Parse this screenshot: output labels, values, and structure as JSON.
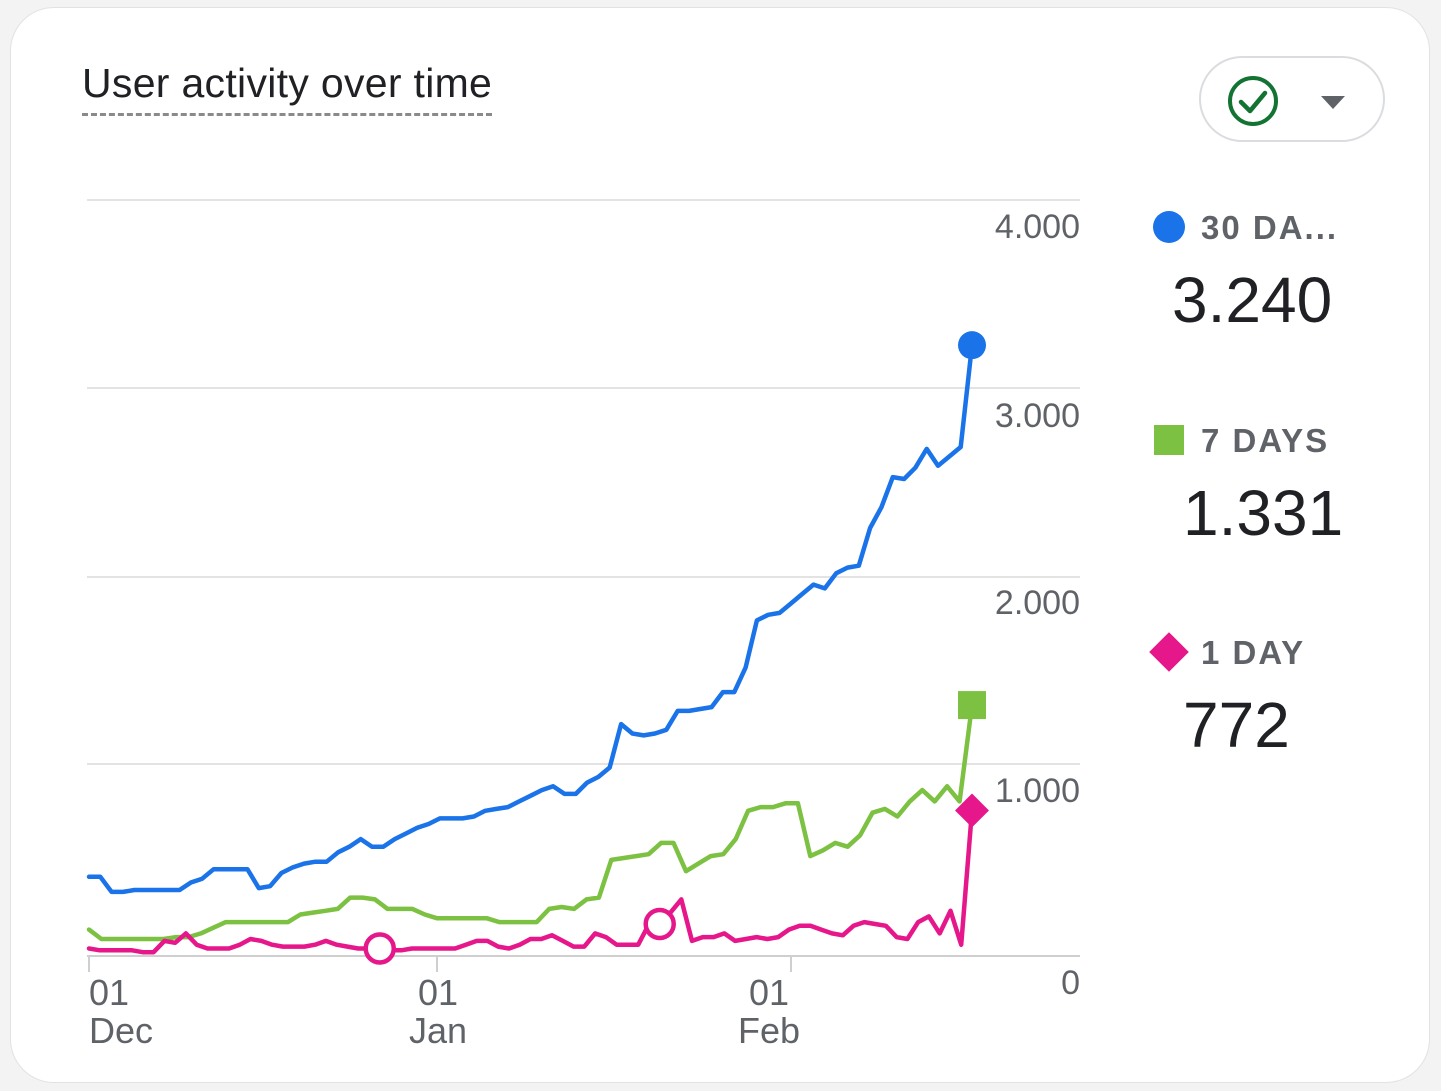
{
  "card": {
    "title": "User activity over time",
    "compare_icon": "check-circle-icon",
    "dropdown_icon": "caret-down-icon"
  },
  "legend": [
    {
      "label": "30 DA...",
      "value": "3.240",
      "marker": "circle",
      "color": "#1a73e8"
    },
    {
      "label": "7 DAYS",
      "value": "1.331",
      "marker": "square",
      "color": "#7cc142"
    },
    {
      "label": "1 DAY",
      "value": "772",
      "marker": "diamond",
      "color": "#e5178a"
    }
  ],
  "chart_data": {
    "type": "line",
    "y_ticks": [
      "4.000",
      "3.000",
      "2.000",
      "1.000",
      "0"
    ],
    "ylim": [
      0,
      4000
    ],
    "x_ticks": [
      {
        "day": "01",
        "month": "Dec"
      },
      {
        "day": "01",
        "month": "Jan"
      },
      {
        "day": "01",
        "month": "Feb"
      }
    ],
    "x_start": "2023-12-01",
    "grid": true,
    "legend_position": "right",
    "series": [
      {
        "name": "30 DA...",
        "color": "#1a73e8",
        "end_marker": "circle",
        "values": [
          420,
          420,
          340,
          340,
          350,
          350,
          350,
          350,
          350,
          390,
          410,
          460,
          460,
          460,
          460,
          360,
          370,
          440,
          470,
          490,
          500,
          500,
          550,
          580,
          620,
          580,
          580,
          620,
          650,
          680,
          700,
          730,
          730,
          730,
          740,
          770,
          780,
          790,
          820,
          850,
          880,
          900,
          860,
          860,
          920,
          950,
          1000,
          1230,
          1180,
          1170,
          1180,
          1200,
          1300,
          1300,
          1310,
          1320,
          1400,
          1400,
          1530,
          1780,
          1810,
          1820,
          1870,
          1920,
          1970,
          1950,
          2030,
          2060,
          2070,
          2270,
          2380,
          2540,
          2530,
          2590,
          2690,
          2600,
          2650,
          2700,
          3240
        ]
      },
      {
        "name": "7 DAYS",
        "color": "#7cc142",
        "end_marker": "square",
        "values": [
          140,
          90,
          90,
          90,
          90,
          90,
          90,
          100,
          100,
          120,
          150,
          180,
          180,
          180,
          180,
          180,
          180,
          220,
          230,
          240,
          250,
          310,
          310,
          300,
          250,
          250,
          250,
          220,
          200,
          200,
          200,
          200,
          200,
          180,
          180,
          180,
          180,
          250,
          260,
          250,
          300,
          310,
          510,
          520,
          530,
          540,
          600,
          600,
          450,
          490,
          530,
          540,
          620,
          770,
          790,
          790,
          810,
          810,
          530,
          560,
          600,
          580,
          640,
          760,
          780,
          740,
          820,
          880,
          820,
          900,
          820,
          1331
        ]
      },
      {
        "name": "1 DAY",
        "color": "#e5178a",
        "end_marker": "diamond",
        "values": [
          40,
          30,
          30,
          30,
          30,
          20,
          20,
          80,
          70,
          120,
          60,
          40,
          40,
          40,
          60,
          90,
          80,
          60,
          50,
          50,
          50,
          60,
          80,
          60,
          50,
          40,
          40,
          40,
          30,
          30,
          40,
          40,
          40,
          40,
          40,
          60,
          80,
          80,
          50,
          40,
          60,
          90,
          90,
          110,
          80,
          50,
          50,
          120,
          100,
          60,
          60,
          60,
          170,
          170,
          230,
          300,
          80,
          100,
          100,
          120,
          80,
          90,
          100,
          90,
          100,
          140,
          160,
          160,
          140,
          120,
          110,
          160,
          180,
          170,
          160,
          100,
          90,
          180,
          210,
          120,
          240,
          60,
          772
        ]
      }
    ],
    "highlights": [
      {
        "series": "1 DAY",
        "index": 27,
        "shape": "open-circle"
      },
      {
        "series": "1 DAY",
        "index": 53,
        "shape": "open-circle"
      }
    ]
  }
}
